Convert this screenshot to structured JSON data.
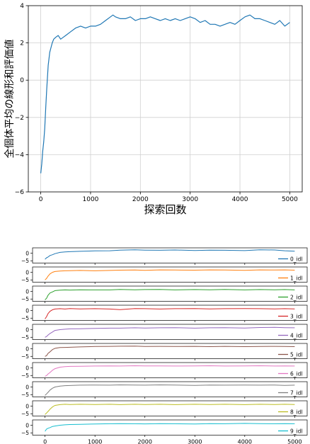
{
  "chart_data": [
    {
      "type": "line",
      "title": "",
      "xlabel": "探索回数",
      "ylabel": "全個体平均の線形和評価値",
      "xlim": [
        -250,
        5250
      ],
      "ylim": [
        -6,
        4
      ],
      "xticks": [
        0,
        1000,
        2000,
        3000,
        4000,
        5000
      ],
      "yticks": [
        -6,
        -4,
        -2,
        0,
        2,
        4
      ],
      "grid": true,
      "legend": "none",
      "series": [
        {
          "color": "#1f77b4",
          "x": [
            0,
            20,
            40,
            60,
            80,
            100,
            120,
            150,
            180,
            200,
            230,
            260,
            300,
            350,
            400,
            450,
            500,
            600,
            700,
            800,
            900,
            1000,
            1100,
            1200,
            1300,
            1400,
            1450,
            1500,
            1600,
            1700,
            1800,
            1900,
            2000,
            2100,
            2200,
            2300,
            2400,
            2500,
            2600,
            2700,
            2800,
            2900,
            3000,
            3100,
            3200,
            3300,
            3400,
            3500,
            3600,
            3700,
            3800,
            3900,
            4000,
            4100,
            4200,
            4300,
            4400,
            4500,
            4600,
            4700,
            4800,
            4900,
            5000
          ],
          "values": [
            -5.0,
            -4.5,
            -3.8,
            -3.3,
            -2.6,
            -1.5,
            -0.5,
            0.8,
            1.5,
            1.7,
            2.0,
            2.2,
            2.3,
            2.4,
            2.2,
            2.3,
            2.4,
            2.6,
            2.8,
            2.9,
            2.8,
            2.9,
            2.9,
            3.0,
            3.2,
            3.4,
            3.5,
            3.4,
            3.3,
            3.3,
            3.4,
            3.2,
            3.3,
            3.3,
            3.4,
            3.3,
            3.2,
            3.3,
            3.2,
            3.3,
            3.2,
            3.3,
            3.4,
            3.3,
            3.1,
            3.2,
            3.0,
            3.0,
            2.9,
            3.0,
            3.1,
            3.0,
            3.2,
            3.4,
            3.5,
            3.3,
            3.3,
            3.2,
            3.1,
            3.0,
            3.2,
            2.9,
            3.1
          ]
        }
      ]
    },
    {
      "type": "line",
      "title": "",
      "xlim": [
        -250,
        5250
      ],
      "ylim": [
        -6.5,
        3.5
      ],
      "xticks": [
        0,
        1000,
        2000,
        3000,
        4000,
        5000
      ],
      "yticks": [
        0,
        -5
      ],
      "grid": false,
      "legend": "bottom-right",
      "series": [
        {
          "name": "0_idl",
          "color": "#1f77b4",
          "x": [
            0,
            30,
            60,
            100,
            150,
            200,
            300,
            400,
            500,
            700,
            1000,
            1300,
            1500,
            1800,
            2000,
            2300,
            2600,
            3000,
            3300,
            3600,
            4000,
            4300,
            4600,
            4800,
            5000
          ],
          "values": [
            -4.0,
            -3.0,
            -2.5,
            -1.5,
            -1.0,
            -0.3,
            0.5,
            0.8,
            1.0,
            1.2,
            1.5,
            1.6,
            2.0,
            2.2,
            2.0,
            1.9,
            2.1,
            1.8,
            2.0,
            1.9,
            1.7,
            2.2,
            2.1,
            1.6,
            1.3
          ]
        },
        {
          "name": "1_idl",
          "color": "#ff7f0e",
          "x": [
            0,
            30,
            60,
            100,
            150,
            200,
            300,
            400,
            500,
            700,
            1000,
            1300,
            1500,
            1800,
            2000,
            2300,
            2600,
            3000,
            3300,
            3600,
            4000,
            4300,
            4600,
            4800,
            5000
          ],
          "values": [
            -5.0,
            -4.0,
            -2.5,
            -1.0,
            0.0,
            0.5,
            0.8,
            1.0,
            1.1,
            1.2,
            1.0,
            1.2,
            1.4,
            1.5,
            1.3,
            1.6,
            1.5,
            1.4,
            1.6,
            1.5,
            1.3,
            1.6,
            1.5,
            1.6,
            1.4
          ]
        },
        {
          "name": "2_idl",
          "color": "#2ca02c",
          "x": [
            0,
            30,
            60,
            100,
            150,
            200,
            300,
            400,
            500,
            700,
            1000,
            1300,
            1500,
            1800,
            2000,
            2300,
            2600,
            3000,
            3300,
            3600,
            4000,
            4300,
            4600,
            4800,
            5000
          ],
          "values": [
            -5.5,
            -4.5,
            -2.5,
            -1.0,
            -0.3,
            0.5,
            0.8,
            1.0,
            0.9,
            1.1,
            1.0,
            1.0,
            1.3,
            1.1,
            1.2,
            1.3,
            1.0,
            1.2,
            1.1,
            1.3,
            1.0,
            1.2,
            1.1,
            1.2,
            1.0
          ]
        },
        {
          "name": "3_idl",
          "color": "#d62728",
          "x": [
            0,
            30,
            60,
            100,
            150,
            200,
            300,
            400,
            500,
            700,
            1000,
            1300,
            1500,
            1800,
            2000,
            2300,
            2600,
            3000,
            3300,
            3600,
            4000,
            4300,
            4600,
            4800,
            5000
          ],
          "values": [
            -5.5,
            -4.0,
            -2.0,
            -0.5,
            0.5,
            1.0,
            1.2,
            1.0,
            1.3,
            1.1,
            1.2,
            1.0,
            0.6,
            1.3,
            1.2,
            1.0,
            1.2,
            1.3,
            1.1,
            1.2,
            1.3,
            1.2,
            1.1,
            1.2,
            1.1
          ]
        },
        {
          "name": "4_idl",
          "color": "#9467bd",
          "x": [
            0,
            30,
            60,
            100,
            150,
            200,
            300,
            400,
            500,
            700,
            1000,
            1300,
            1500,
            1800,
            2000,
            2300,
            2600,
            3000,
            3300,
            3600,
            4000,
            4300,
            4600,
            4800,
            5000
          ],
          "values": [
            -5.0,
            -4.5,
            -3.5,
            -2.5,
            -1.5,
            -0.5,
            0.0,
            0.3,
            0.5,
            0.6,
            0.8,
            1.0,
            1.0,
            1.2,
            1.1,
            1.2,
            1.3,
            1.0,
            1.2,
            1.3,
            1.1,
            1.4,
            1.5,
            1.3,
            1.2
          ]
        },
        {
          "name": "5_idl",
          "color": "#8c564b",
          "x": [
            0,
            30,
            60,
            100,
            150,
            200,
            300,
            400,
            500,
            700,
            1000,
            1300,
            1500,
            1800,
            2000,
            2300,
            2600,
            3000,
            3300,
            3600,
            4000,
            4300,
            4600,
            4800,
            5000
          ],
          "values": [
            -5.0,
            -4.5,
            -3.0,
            -2.0,
            -0.5,
            0.3,
            0.8,
            0.9,
            1.0,
            1.2,
            1.5,
            1.6,
            1.7,
            1.8,
            1.5,
            1.6,
            1.5,
            1.6,
            1.4,
            1.6,
            1.4,
            1.5,
            1.6,
            1.5,
            1.4
          ]
        },
        {
          "name": "6_idl",
          "color": "#e377c2",
          "x": [
            0,
            30,
            60,
            100,
            150,
            200,
            300,
            400,
            500,
            700,
            1000,
            1300,
            1500,
            1800,
            2000,
            2300,
            2600,
            3000,
            3300,
            3600,
            4000,
            4300,
            4600,
            4800,
            5000
          ],
          "values": [
            -5.5,
            -5.0,
            -4.0,
            -3.0,
            -1.5,
            -0.5,
            0.5,
            0.8,
            1.0,
            1.1,
            1.2,
            1.3,
            1.2,
            1.4,
            1.3,
            1.3,
            1.2,
            1.3,
            1.4,
            1.2,
            1.3,
            1.4,
            1.2,
            1.3,
            1.2
          ]
        },
        {
          "name": "7_idl",
          "color": "#7f7f7f",
          "x": [
            0,
            30,
            60,
            100,
            150,
            200,
            300,
            400,
            500,
            700,
            1000,
            1300,
            1500,
            1800,
            2000,
            2300,
            2600,
            3000,
            3300,
            3600,
            4000,
            4300,
            4600,
            4800,
            5000
          ],
          "values": [
            -5.5,
            -4.5,
            -3.5,
            -2.0,
            -0.8,
            0.0,
            0.6,
            0.9,
            1.0,
            1.2,
            1.3,
            1.2,
            1.4,
            1.3,
            1.2,
            1.4,
            1.3,
            1.1,
            1.3,
            1.2,
            1.3,
            1.2,
            1.3,
            1.1,
            1.2
          ]
        },
        {
          "name": "8_idl",
          "color": "#bcbd22",
          "x": [
            0,
            30,
            60,
            100,
            150,
            200,
            300,
            400,
            500,
            700,
            1000,
            1300,
            1500,
            1800,
            2000,
            2300,
            2600,
            3000,
            3300,
            3600,
            4000,
            4300,
            4600,
            4800,
            5000
          ],
          "values": [
            -5.5,
            -4.5,
            -3.5,
            -2.0,
            -0.5,
            0.5,
            1.0,
            1.2,
            1.1,
            1.2,
            1.1,
            1.2,
            1.0,
            1.2,
            1.1,
            1.2,
            1.0,
            1.2,
            1.1,
            1.2,
            1.0,
            1.2,
            1.1,
            1.2,
            1.1
          ]
        },
        {
          "name": "9_idl",
          "color": "#17becf",
          "x": [
            0,
            30,
            60,
            100,
            150,
            200,
            300,
            400,
            500,
            700,
            1000,
            1300,
            1500,
            1800,
            2000,
            2300,
            2600,
            3000,
            3300,
            3600,
            4000,
            4300,
            4600,
            4800,
            5000
          ],
          "values": [
            -4.0,
            -2.5,
            -2.0,
            -1.5,
            -0.8,
            -0.5,
            0.0,
            0.3,
            0.5,
            0.6,
            0.8,
            1.0,
            1.1,
            1.0,
            0.9,
            1.1,
            1.0,
            0.8,
            1.1,
            1.0,
            1.2,
            1.1,
            1.0,
            1.1,
            1.0
          ]
        }
      ]
    }
  ]
}
